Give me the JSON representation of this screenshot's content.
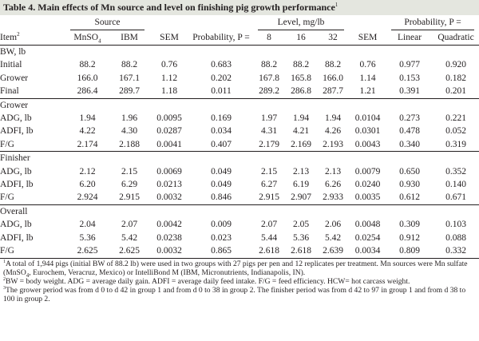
{
  "title": {
    "text": "Table 4. Main effects of Mn source and level on finishing pig growth performance",
    "sup": "1"
  },
  "header": {
    "source_group": "Source",
    "level_group": "Level, mg/lb",
    "probability_group": "Probability, P =",
    "item": "Item",
    "item_sup": "2",
    "mnso4_prefix": "MnSO",
    "mnso4_sub": "4",
    "ibm": "IBM",
    "sem1": "SEM",
    "probability": "Probability, P =",
    "l8": "8",
    "l16": "16",
    "l32": "32",
    "sem2": "SEM",
    "linear": "Linear",
    "quadratic": "Quadratic"
  },
  "sections": {
    "bw": {
      "label": "BW, lb",
      "rows": [
        {
          "item": "Initial",
          "mnso4": "88.2",
          "ibm": "88.2",
          "sem1": "0.76",
          "p": "0.683",
          "l8": "88.2",
          "l16": "88.2",
          "l32": "88.2",
          "sem2": "0.76",
          "linear": "0.977",
          "quadratic": "0.920"
        },
        {
          "item": "Grower",
          "mnso4": "166.0",
          "ibm": "167.1",
          "sem1": "1.12",
          "p": "0.202",
          "l8": "167.8",
          "l16": "165.8",
          "l32": "166.0",
          "sem2": "1.14",
          "linear": "0.153",
          "quadratic": "0.182"
        },
        {
          "item": "Final",
          "mnso4": "286.4",
          "ibm": "289.7",
          "sem1": "1.18",
          "p": "0.011",
          "l8": "289.2",
          "l16": "286.8",
          "l32": "287.7",
          "sem2": "1.21",
          "linear": "0.391",
          "quadratic": "0.201"
        }
      ]
    },
    "grower": {
      "label": "Grower",
      "rows": [
        {
          "item": "ADG, lb",
          "mnso4": "1.94",
          "ibm": "1.96",
          "sem1": "0.0095",
          "p": "0.169",
          "l8": "1.97",
          "l16": "1.94",
          "l32": "1.94",
          "sem2": "0.0104",
          "linear": "0.273",
          "quadratic": "0.221"
        },
        {
          "item": "ADFI, lb",
          "mnso4": "4.22",
          "ibm": "4.30",
          "sem1": "0.0287",
          "p": "0.034",
          "l8": "4.31",
          "l16": "4.21",
          "l32": "4.26",
          "sem2": "0.0301",
          "linear": "0.478",
          "quadratic": "0.052"
        },
        {
          "item": "F/G",
          "mnso4": "2.174",
          "ibm": "2.188",
          "sem1": "0.0041",
          "p": "0.407",
          "l8": "2.179",
          "l16": "2.169",
          "l32": "2.193",
          "sem2": "0.0043",
          "linear": "0.340",
          "quadratic": "0.319"
        }
      ]
    },
    "finisher": {
      "label": "Finisher",
      "rows": [
        {
          "item": "ADG, lb",
          "mnso4": "2.12",
          "ibm": "2.15",
          "sem1": "0.0069",
          "p": "0.049",
          "l8": "2.15",
          "l16": "2.13",
          "l32": "2.13",
          "sem2": "0.0079",
          "linear": "0.650",
          "quadratic": "0.352"
        },
        {
          "item": "ADFI, lb",
          "mnso4": "6.20",
          "ibm": "6.29",
          "sem1": "0.0213",
          "p": "0.049",
          "l8": "6.27",
          "l16": "6.19",
          "l32": "6.26",
          "sem2": "0.0240",
          "linear": "0.930",
          "quadratic": "0.140"
        },
        {
          "item": "F/G",
          "mnso4": "2.924",
          "ibm": "2.915",
          "sem1": "0.0032",
          "p": "0.846",
          "l8": "2.915",
          "l16": "2.907",
          "l32": "2.933",
          "sem2": "0.0035",
          "linear": "0.612",
          "quadratic": "0.671"
        }
      ]
    },
    "overall": {
      "label": "Overall",
      "rows": [
        {
          "item": "ADG, lb",
          "mnso4": "2.04",
          "ibm": "2.07",
          "sem1": "0.0042",
          "p": "0.009",
          "l8": "2.07",
          "l16": "2.05",
          "l32": "2.06",
          "sem2": "0.0048",
          "linear": "0.309",
          "quadratic": "0.103"
        },
        {
          "item": "ADFI, lb",
          "mnso4": "5.36",
          "ibm": "5.42",
          "sem1": "0.0238",
          "p": "0.023",
          "l8": "5.44",
          "l16": "5.36",
          "l32": "5.42",
          "sem2": "0.0254",
          "linear": "0.912",
          "quadratic": "0.088"
        },
        {
          "item": "F/G",
          "mnso4": "2.625",
          "ibm": "2.625",
          "sem1": "0.0032",
          "p": "0.865",
          "l8": "2.618",
          "l16": "2.618",
          "l32": "2.639",
          "sem2": "0.0034",
          "linear": "0.809",
          "quadratic": "0.332"
        }
      ]
    }
  },
  "footnotes": {
    "n1_mark": "1",
    "n1_a": "A total of 1,944 pigs (initial BW of 88.2 lb) were used in two groups with 27 pigs per pen and 12 replicates per treatment. Mn sources were Mn sulfate (MnSO",
    "n1_sub": "4",
    "n1_b": ", Eurochem, Veracruz, Mexico) or IntelliBond M (IBM, Micronutrients, Indianapolis, IN).",
    "n2_mark": "2",
    "n2": "BW = body weight. ADG = average daily gain. ADFI = average daily feed intake. F/G = feed efficiency. HCW= hot carcass weight.",
    "n3_mark": "3",
    "n3": "The grower period was from d 0 to d 42 in group 1 and from d 0 to 38 in group 2. The finisher period was from d 42 to 97 in group 1 and from d 38 to 100 in group 2."
  },
  "colors": {
    "title_band": "#e4e6df",
    "text": "#231f20"
  }
}
